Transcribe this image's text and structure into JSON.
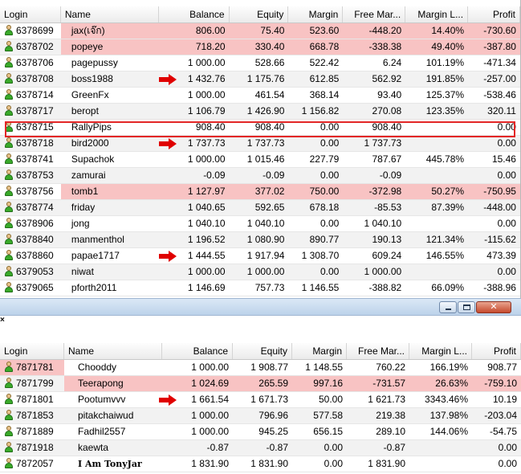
{
  "columns": [
    "Login",
    "Name",
    "Balance",
    "Equity",
    "Margin",
    "Free Mar...",
    "Margin L...",
    "Profit"
  ],
  "table1": [
    {
      "login": "6378699",
      "name": "jax(เจ๊ก)",
      "balance": "806.00",
      "equity": "75.40",
      "margin": "523.60",
      "free": "-448.20",
      "level": "14.40%",
      "profit": "-730.60",
      "pink": true,
      "arrow": false
    },
    {
      "login": "6378702",
      "name": "popeye",
      "balance": "718.20",
      "equity": "330.40",
      "margin": "668.78",
      "free": "-338.38",
      "level": "49.40%",
      "profit": "-387.80",
      "pink": true,
      "arrow": false
    },
    {
      "login": "6378706",
      "name": "pagepussy",
      "balance": "1 000.00",
      "equity": "528.66",
      "margin": "522.42",
      "free": "6.24",
      "level": "101.19%",
      "profit": "-471.34",
      "pink": false,
      "arrow": false
    },
    {
      "login": "6378708",
      "name": "boss1988",
      "balance": "1 432.76",
      "equity": "1 175.76",
      "margin": "612.85",
      "free": "562.92",
      "level": "191.85%",
      "profit": "-257.00",
      "pink": false,
      "arrow": true
    },
    {
      "login": "6378714",
      "name": "GreenFx",
      "balance": "1 000.00",
      "equity": "461.54",
      "margin": "368.14",
      "free": "93.40",
      "level": "125.37%",
      "profit": "-538.46",
      "pink": false,
      "arrow": false
    },
    {
      "login": "6378717",
      "name": "beropt",
      "balance": "1 106.79",
      "equity": "1 426.90",
      "margin": "1 156.82",
      "free": "270.08",
      "level": "123.35%",
      "profit": "320.11",
      "pink": false,
      "arrow": false
    },
    {
      "login": "6378715",
      "name": "RallyPips",
      "balance": "908.40",
      "equity": "908.40",
      "margin": "0.00",
      "free": "908.40",
      "level": "",
      "profit": "0.00",
      "pink": false,
      "arrow": false
    },
    {
      "login": "6378718",
      "name": "bird2000",
      "balance": "1 737.73",
      "equity": "1 737.73",
      "margin": "0.00",
      "free": "1 737.73",
      "level": "",
      "profit": "0.00",
      "pink": false,
      "arrow": true
    },
    {
      "login": "6378741",
      "name": "Supachok",
      "balance": "1 000.00",
      "equity": "1 015.46",
      "margin": "227.79",
      "free": "787.67",
      "level": "445.78%",
      "profit": "15.46",
      "pink": false,
      "arrow": false
    },
    {
      "login": "6378753",
      "name": "zamurai",
      "balance": "-0.09",
      "equity": "-0.09",
      "margin": "0.00",
      "free": "-0.09",
      "level": "",
      "profit": "0.00",
      "pink": false,
      "arrow": false
    },
    {
      "login": "6378756",
      "name": "tomb1",
      "balance": "1 127.97",
      "equity": "377.02",
      "margin": "750.00",
      "free": "-372.98",
      "level": "50.27%",
      "profit": "-750.95",
      "pink": true,
      "arrow": false
    },
    {
      "login": "6378774",
      "name": "friday",
      "balance": "1 040.65",
      "equity": "592.65",
      "margin": "678.18",
      "free": "-85.53",
      "level": "87.39%",
      "profit": "-448.00",
      "pink": false,
      "arrow": false
    },
    {
      "login": "6378906",
      "name": "jong",
      "balance": "1 040.10",
      "equity": "1 040.10",
      "margin": "0.00",
      "free": "1 040.10",
      "level": "",
      "profit": "0.00",
      "pink": false,
      "arrow": false
    },
    {
      "login": "6378840",
      "name": "manmenthol",
      "balance": "1 196.52",
      "equity": "1 080.90",
      "margin": "890.77",
      "free": "190.13",
      "level": "121.34%",
      "profit": "-115.62",
      "pink": false,
      "arrow": false
    },
    {
      "login": "6378860",
      "name": "papae1717",
      "balance": "1 444.55",
      "equity": "1 917.94",
      "margin": "1 308.70",
      "free": "609.24",
      "level": "146.55%",
      "profit": "473.39",
      "pink": false,
      "arrow": true
    },
    {
      "login": "6379053",
      "name": "niwat",
      "balance": "1 000.00",
      "equity": "1 000.00",
      "margin": "0.00",
      "free": "1 000.00",
      "level": "",
      "profit": "0.00",
      "pink": false,
      "arrow": false
    },
    {
      "login": "6379065",
      "name": "pforth2011",
      "balance": "1 146.69",
      "equity": "757.73",
      "margin": "1 146.55",
      "free": "-388.82",
      "level": "66.09%",
      "profit": "-388.96",
      "pink": false,
      "arrow": false
    }
  ],
  "table2": [
    {
      "login": "7871781",
      "name": "Chooddy",
      "balance": "1 000.00",
      "equity": "1 908.77",
      "margin": "1 148.55",
      "free": "760.22",
      "level": "166.19%",
      "profit": "908.77",
      "pink": false,
      "loginpink": true,
      "arrow": false
    },
    {
      "login": "7871799",
      "name": "Teerapong",
      "balance": "1 024.69",
      "equity": "265.59",
      "margin": "997.16",
      "free": "-731.57",
      "level": "26.63%",
      "profit": "-759.10",
      "pink": true,
      "loginpink": false,
      "arrow": false
    },
    {
      "login": "7871801",
      "name": "Pootumvvv",
      "balance": "1 661.54",
      "equity": "1 671.73",
      "margin": "50.00",
      "free": "1 621.73",
      "level": "3343.46%",
      "profit": "10.19",
      "pink": false,
      "loginpink": false,
      "arrow": true
    },
    {
      "login": "7871853",
      "name": "pitakchaiwud",
      "balance": "1 000.00",
      "equity": "796.96",
      "margin": "577.58",
      "free": "219.38",
      "level": "137.98%",
      "profit": "-203.04",
      "pink": false,
      "loginpink": false,
      "arrow": false
    },
    {
      "login": "7871889",
      "name": "Fadhil2557",
      "balance": "1 000.00",
      "equity": "945.25",
      "margin": "656.15",
      "free": "289.10",
      "level": "144.06%",
      "profit": "-54.75",
      "pink": false,
      "loginpink": false,
      "arrow": false
    },
    {
      "login": "7871918",
      "name": "kaewta",
      "balance": "-0.87",
      "equity": "-0.87",
      "margin": "0.00",
      "free": "-0.87",
      "level": "",
      "profit": "0.00",
      "pink": false,
      "loginpink": false,
      "arrow": false
    },
    {
      "login": "7872057",
      "name": "I Am TonyJar",
      "balance": "1 831.90",
      "equity": "1 831.90",
      "margin": "0.00",
      "free": "1 831.90",
      "level": "",
      "profit": "0.00",
      "pink": false,
      "loginpink": false,
      "arrow": false
    }
  ],
  "window_buttons": [
    "minimize-icon",
    "maximize-icon",
    "close-icon"
  ],
  "close_mark": "×",
  "colors": {
    "highlight": "#f8c3c3",
    "box": "#e32626",
    "arrow": "#e00000"
  }
}
